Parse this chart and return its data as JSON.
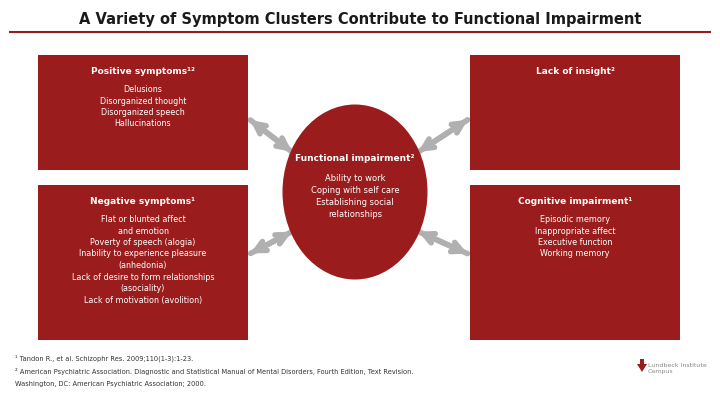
{
  "title": "A Variety of Symptom Clusters Contribute to Functional Impairment",
  "bg_color": "#ffffff",
  "title_color": "#1a1a1a",
  "box_color": "#9b1c1c",
  "text_color": "#ffffff",
  "arrow_color": "#b0b0b0",
  "title_line_color": "#9b1c1c",
  "top_left_title": "Positive symptoms¹²",
  "top_left_items": [
    "Delusions",
    "Disorganized thought",
    "Disorganized speech",
    "Hallucinations"
  ],
  "top_right_title": "Lack of insight²",
  "top_right_items": [],
  "bottom_left_title": "Negative symptoms¹",
  "bottom_left_items": [
    "Flat or blunted affect",
    "and emotion",
    "Poverty of speech (alogia)",
    "Inability to experience pleasure",
    "(anhedonia)",
    "Lack of desire to form relationships",
    "(asociality)",
    "Lack of motivation (avolition)"
  ],
  "bottom_right_title": "Cognitive impairment¹",
  "bottom_right_items": [
    "Episodic memory",
    "Inappropriate affect",
    "Executive function",
    "Working memory"
  ],
  "center_title": "Functional impairment²",
  "center_items": [
    "Ability to work",
    "Coping with self care",
    "Establishing social",
    "relationships"
  ],
  "footnote1": "¹ Tandon R., et al. Schizophr Res. 2009;110(1-3):1-23.",
  "footnote2": "² American Psychiatric Association. Diagnostic and Statistical Manual of Mental Disorders, Fourth Edition, Text Revision.",
  "footnote3": "Washington, DC: American Psychiatric Association; 2000.",
  "logo_text": "Lundbeck Institute\nCampus",
  "logo_color": "#9b1c1c"
}
